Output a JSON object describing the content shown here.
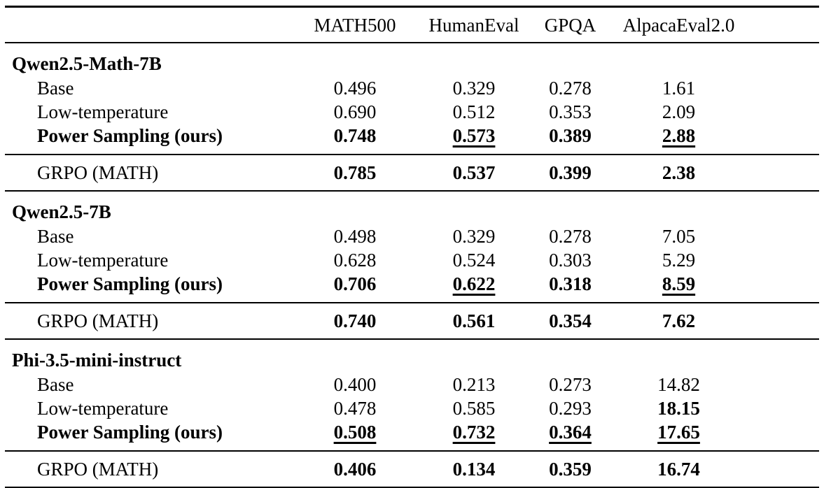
{
  "table": {
    "columns": [
      "MATH500",
      "HumanEval",
      "GPQA",
      "AlpacaEval2.0"
    ],
    "sections": [
      {
        "model": "Qwen2.5-Math-7B",
        "rows": [
          {
            "label": "Base",
            "values": [
              "0.496",
              "0.329",
              "0.278",
              "1.61"
            ]
          },
          {
            "label": "Low-temperature",
            "values": [
              "0.690",
              "0.512",
              "0.353",
              "2.09"
            ]
          },
          {
            "label": "Power Sampling (ours)",
            "label_style": "bold",
            "values": [
              "0.748",
              "0.573",
              "0.389",
              "2.88"
            ],
            "styles": [
              "bold",
              "bold underline",
              "bold",
              "bold underline"
            ]
          }
        ],
        "grpo": {
          "label": "GRPO (MATH)",
          "values": [
            "0.785",
            "0.537",
            "0.399",
            "2.38"
          ],
          "styles": [
            "bold",
            "bold",
            "bold",
            "bold"
          ]
        }
      },
      {
        "model": "Qwen2.5-7B",
        "rows": [
          {
            "label": "Base",
            "values": [
              "0.498",
              "0.329",
              "0.278",
              "7.05"
            ]
          },
          {
            "label": "Low-temperature",
            "values": [
              "0.628",
              "0.524",
              "0.303",
              "5.29"
            ]
          },
          {
            "label": "Power Sampling (ours)",
            "label_style": "bold",
            "values": [
              "0.706",
              "0.622",
              "0.318",
              "8.59"
            ],
            "styles": [
              "bold",
              "bold underline",
              "bold",
              "bold underline"
            ]
          }
        ],
        "grpo": {
          "label": "GRPO (MATH)",
          "values": [
            "0.740",
            "0.561",
            "0.354",
            "7.62"
          ],
          "styles": [
            "bold",
            "bold",
            "bold",
            "bold"
          ]
        }
      },
      {
        "model": "Phi-3.5-mini-instruct",
        "rows": [
          {
            "label": "Base",
            "values": [
              "0.400",
              "0.213",
              "0.273",
              "14.82"
            ]
          },
          {
            "label": "Low-temperature",
            "values": [
              "0.478",
              "0.585",
              "0.293",
              "18.15"
            ],
            "styles": [
              "",
              "",
              "",
              "bold"
            ]
          },
          {
            "label": "Power Sampling (ours)",
            "label_style": "bold",
            "values": [
              "0.508",
              "0.732",
              "0.364",
              "17.65"
            ],
            "styles": [
              "bold underline",
              "bold underline",
              "bold underline",
              "bold underline"
            ]
          }
        ],
        "grpo": {
          "label": "GRPO (MATH)",
          "values": [
            "0.406",
            "0.134",
            "0.359",
            "16.74"
          ],
          "styles": [
            "bold",
            "bold",
            "bold",
            "bold"
          ]
        }
      }
    ]
  }
}
